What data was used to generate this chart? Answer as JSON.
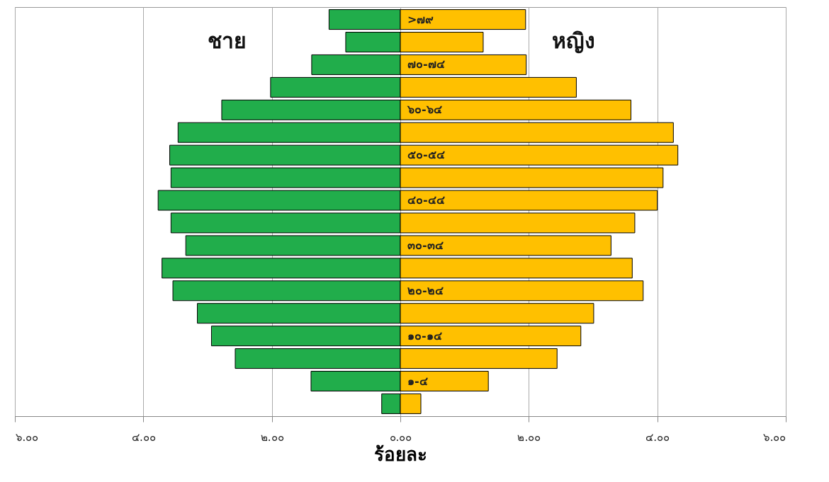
{
  "chart_data": {
    "type": "bar",
    "orientation": "horizontal",
    "xlabel": "ร้อยละ",
    "categories": [
      ">๗๙",
      null,
      "๗๐-๗๔",
      null,
      "๖๐-๖๔",
      null,
      "๕๐-๕๔",
      null,
      "๔๐-๔๔",
      null,
      "๓๐-๓๔",
      null,
      "๒๐-๒๔",
      null,
      "๑๐-๑๔",
      null,
      "๑-๔",
      null
    ],
    "series": [
      {
        "name": "ชาย",
        "color": "#21ad4b",
        "values": [
          -1.11,
          -0.85,
          -1.38,
          -2.02,
          -2.78,
          -3.46,
          -3.59,
          -3.57,
          -3.77,
          -3.57,
          -3.34,
          -3.71,
          -3.54,
          -3.16,
          -2.94,
          -2.57,
          -1.39,
          -0.29
        ]
      },
      {
        "name": "หญิง",
        "color": "#ffc000",
        "values": [
          1.95,
          1.29,
          1.96,
          2.74,
          3.59,
          4.25,
          4.32,
          4.09,
          4.0,
          3.65,
          3.28,
          3.61,
          3.78,
          3.01,
          2.81,
          2.44,
          1.37,
          0.32
        ]
      }
    ],
    "xlim": [
      -6,
      6
    ],
    "xticks": [
      {
        "value": -6,
        "label": "๖.๐๐"
      },
      {
        "value": -4,
        "label": "๔.๐๐"
      },
      {
        "value": -2,
        "label": "๒.๐๐"
      },
      {
        "value": 0,
        "label": "๐.๐๐"
      },
      {
        "value": 2,
        "label": "๒.๐๐"
      },
      {
        "value": 4,
        "label": "๔.๐๐"
      },
      {
        "value": 6,
        "label": "๖.๐๐"
      }
    ],
    "grid": "x",
    "stacked": true,
    "legend": false
  }
}
